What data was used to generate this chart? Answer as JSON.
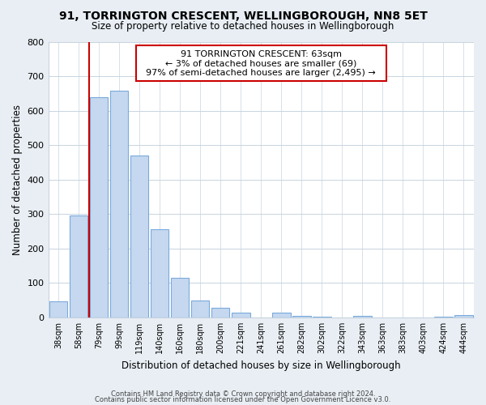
{
  "title": "91, TORRINGTON CRESCENT, WELLINGBOROUGH, NN8 5ET",
  "subtitle": "Size of property relative to detached houses in Wellingborough",
  "xlabel": "Distribution of detached houses by size in Wellingborough",
  "ylabel": "Number of detached properties",
  "bar_labels": [
    "38sqm",
    "58sqm",
    "79sqm",
    "99sqm",
    "119sqm",
    "140sqm",
    "160sqm",
    "180sqm",
    "200sqm",
    "221sqm",
    "241sqm",
    "261sqm",
    "282sqm",
    "302sqm",
    "322sqm",
    "343sqm",
    "363sqm",
    "383sqm",
    "403sqm",
    "424sqm",
    "444sqm"
  ],
  "bar_values": [
    47,
    295,
    640,
    657,
    470,
    255,
    115,
    49,
    29,
    15,
    0,
    13,
    5,
    3,
    0,
    5,
    0,
    0,
    0,
    3,
    8
  ],
  "bar_color": "#c5d8f0",
  "bar_edge_color": "#7aaadc",
  "highlight_color": "#cc0000",
  "vline_x": 1.5,
  "ylim": [
    0,
    800
  ],
  "yticks": [
    0,
    100,
    200,
    300,
    400,
    500,
    600,
    700,
    800
  ],
  "annotation_title": "91 TORRINGTON CRESCENT: 63sqm",
  "annotation_line1": "← 3% of detached houses are smaller (69)",
  "annotation_line2": "97% of semi-detached houses are larger (2,495) →",
  "footer1": "Contains HM Land Registry data © Crown copyright and database right 2024.",
  "footer2": "Contains public sector information licensed under the Open Government Licence v3.0.",
  "bg_color": "#e8eef4",
  "plot_bg_color": "#ffffff",
  "grid_color": "#c8d4e0"
}
